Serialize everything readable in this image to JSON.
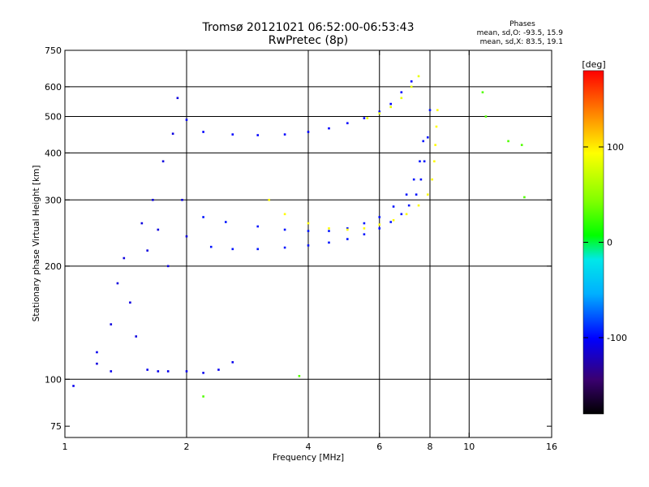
{
  "chart_data": {
    "type": "scatter",
    "title": "Tromsø 20121021 06:52:00-06:53:43",
    "subtitle": "RwPretec (8p)",
    "xlabel": "Frequency [MHz]",
    "ylabel": "Stationary phase Virtual Height [km]",
    "x_scale": "log",
    "y_scale": "log",
    "xlim": [
      1,
      16
    ],
    "ylim": [
      70,
      750
    ],
    "x_ticks": [
      1,
      2,
      4,
      6,
      8,
      10,
      16
    ],
    "x_tick_labels": [
      "1",
      "2",
      "4",
      "6",
      "8",
      "10",
      "16"
    ],
    "y_ticks": [
      75,
      100,
      200,
      300,
      400,
      500,
      600,
      750
    ],
    "y_tick_labels": [
      "75",
      "100",
      "200",
      "300",
      "400",
      "500",
      "600",
      "750"
    ],
    "grid": true,
    "grid_x": [
      2,
      4,
      6,
      8,
      10
    ],
    "grid_y": [
      100,
      200,
      300,
      400,
      500,
      600
    ],
    "phase_box": {
      "title": "Phases",
      "line_O": "mean, sd,O: -93.5, 15.9",
      "line_X": "mean, sd,X:  83.5, 19.1"
    },
    "colorbar": {
      "label": "[deg]",
      "range": [
        -180,
        180
      ],
      "ticks": [
        100,
        0,
        -100
      ],
      "tick_labels": [
        "100",
        "0",
        "-100"
      ]
    },
    "series": [
      {
        "id": "o_mode_F",
        "phase_deg": -95,
        "points": [
          [
            2.3,
            225
          ],
          [
            2.6,
            222
          ],
          [
            3.0,
            222
          ],
          [
            3.5,
            224
          ],
          [
            4.0,
            227
          ],
          [
            4.5,
            231
          ],
          [
            5.0,
            236
          ],
          [
            5.5,
            243
          ],
          [
            6.0,
            252
          ],
          [
            6.4,
            262
          ],
          [
            6.8,
            275
          ],
          [
            7.1,
            290
          ],
          [
            7.4,
            310
          ],
          [
            7.6,
            340
          ],
          [
            7.75,
            380
          ],
          [
            7.9,
            440
          ],
          [
            8.0,
            520
          ],
          [
            2.2,
            270
          ],
          [
            2.5,
            262
          ],
          [
            3.0,
            255
          ],
          [
            3.5,
            250
          ],
          [
            4.0,
            248
          ],
          [
            4.5,
            248
          ],
          [
            5.0,
            252
          ],
          [
            5.5,
            260
          ],
          [
            6.0,
            270
          ],
          [
            6.5,
            288
          ],
          [
            7.0,
            310
          ],
          [
            7.3,
            340
          ],
          [
            7.55,
            380
          ],
          [
            7.7,
            430
          ]
        ]
      },
      {
        "id": "x_mode_F",
        "phase_deg": 95,
        "points": [
          [
            3.2,
            300
          ],
          [
            3.5,
            275
          ],
          [
            4.0,
            260
          ],
          [
            4.5,
            252
          ],
          [
            5.0,
            250
          ],
          [
            5.5,
            252
          ],
          [
            6.0,
            258
          ],
          [
            6.5,
            265
          ],
          [
            7.0,
            275
          ],
          [
            7.5,
            290
          ],
          [
            7.9,
            310
          ],
          [
            8.1,
            340
          ],
          [
            8.2,
            380
          ],
          [
            8.25,
            420
          ],
          [
            8.3,
            470
          ],
          [
            8.35,
            520
          ]
        ]
      },
      {
        "id": "o_mode_F2_multi",
        "phase_deg": -100,
        "points": [
          [
            2.0,
            490
          ],
          [
            2.2,
            455
          ],
          [
            2.6,
            448
          ],
          [
            3.0,
            446
          ],
          [
            3.5,
            448
          ],
          [
            4.0,
            455
          ],
          [
            4.5,
            465
          ],
          [
            5.0,
            480
          ],
          [
            5.5,
            495
          ],
          [
            6.0,
            515
          ],
          [
            6.4,
            540
          ],
          [
            6.8,
            580
          ],
          [
            7.2,
            620
          ]
        ]
      },
      {
        "id": "x_mode_F2_multi",
        "phase_deg": 85,
        "points": [
          [
            5.6,
            495
          ],
          [
            6.0,
            510
          ],
          [
            6.4,
            530
          ],
          [
            6.8,
            560
          ],
          [
            7.2,
            600
          ],
          [
            7.5,
            640
          ]
        ]
      },
      {
        "id": "e_region_spread",
        "phase_deg": -110,
        "points": [
          [
            1.2,
            110
          ],
          [
            1.3,
            140
          ],
          [
            1.35,
            180
          ],
          [
            1.4,
            210
          ],
          [
            1.45,
            160
          ],
          [
            1.5,
            130
          ],
          [
            1.55,
            260
          ],
          [
            1.6,
            220
          ],
          [
            1.65,
            300
          ],
          [
            1.7,
            250
          ],
          [
            1.75,
            380
          ],
          [
            1.8,
            200
          ],
          [
            1.85,
            450
          ],
          [
            1.9,
            560
          ],
          [
            1.95,
            300
          ],
          [
            2.0,
            240
          ]
        ]
      },
      {
        "id": "sporadic_e",
        "phase_deg": -105,
        "points": [
          [
            1.6,
            106
          ],
          [
            1.7,
            105
          ],
          [
            1.8,
            105
          ],
          [
            2.0,
            105
          ],
          [
            2.2,
            104
          ],
          [
            2.4,
            106
          ],
          [
            2.6,
            111
          ],
          [
            1.3,
            105
          ],
          [
            1.2,
            118
          ],
          [
            1.05,
            96
          ]
        ]
      },
      {
        "id": "scattered",
        "phase_deg": 30,
        "points": [
          [
            10.8,
            580
          ],
          [
            11.0,
            500
          ],
          [
            12.5,
            430
          ],
          [
            13.5,
            420
          ],
          [
            13.7,
            305
          ],
          [
            3.8,
            102
          ],
          [
            2.2,
            90
          ]
        ]
      }
    ]
  }
}
